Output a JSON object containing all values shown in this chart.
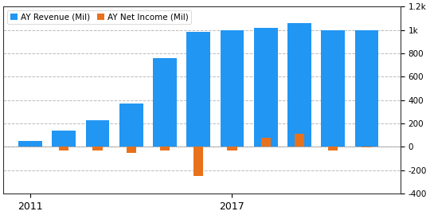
{
  "years": [
    2011,
    2012,
    2013,
    2014,
    2015,
    2016,
    2017,
    2018,
    2019,
    2020,
    2021
  ],
  "revenue": [
    50,
    140,
    230,
    370,
    760,
    980,
    1000,
    1020,
    1060,
    1000,
    1000
  ],
  "net_income": [
    5,
    -30,
    -30,
    -50,
    -30,
    -250,
    -30,
    80,
    110,
    -30,
    -5
  ],
  "revenue_color": "#2196F3",
  "net_income_color": "#E8721C",
  "legend_revenue": "AY Revenue (Mil)",
  "legend_net_income": "AY Net Income (Mil)",
  "xlim": [
    2010.2,
    2022.0
  ],
  "ylim": [
    -400,
    1200
  ],
  "yticks": [
    -400,
    -200,
    0,
    200,
    400,
    600,
    800,
    1000,
    1200
  ],
  "ytick_labels": [
    "-400",
    "-200",
    "0",
    "200",
    "400",
    "600",
    "800",
    "1k",
    "1.2k"
  ],
  "xtick_positions": [
    2011,
    2017
  ],
  "bar_width": 0.7,
  "background_color": "#ffffff",
  "grid_color": "#bbbbbb"
}
